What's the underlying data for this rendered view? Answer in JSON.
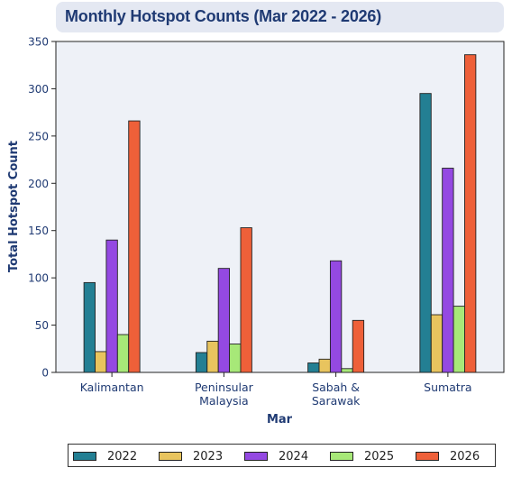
{
  "chart_data": {
    "type": "bar",
    "title": "Monthly Hotspot Counts (Mar 2022 - 2026)",
    "xlabel": "Mar",
    "ylabel": "Total Hotspot Count",
    "ylim": [
      0,
      350
    ],
    "yticks": [
      0,
      50,
      100,
      150,
      200,
      250,
      300,
      350
    ],
    "categories": [
      [
        "Kalimantan"
      ],
      [
        "Peninsular",
        "Malaysia"
      ],
      [
        "Sabah &",
        "Sarawak"
      ],
      [
        "Sumatra"
      ]
    ],
    "series": [
      {
        "name": "2022",
        "color": "#237f93",
        "values": [
          95,
          21,
          10,
          295
        ]
      },
      {
        "name": "2023",
        "color": "#e8c45e",
        "values": [
          22,
          33,
          14,
          61
        ]
      },
      {
        "name": "2024",
        "color": "#9449e2",
        "values": [
          140,
          110,
          118,
          216
        ]
      },
      {
        "name": "2025",
        "color": "#a7e878",
        "values": [
          40,
          30,
          4,
          70
        ]
      },
      {
        "name": "2026",
        "color": "#ee6039",
        "values": [
          266,
          153,
          55,
          336
        ]
      }
    ],
    "legend_position": "bottom",
    "grid": false
  }
}
